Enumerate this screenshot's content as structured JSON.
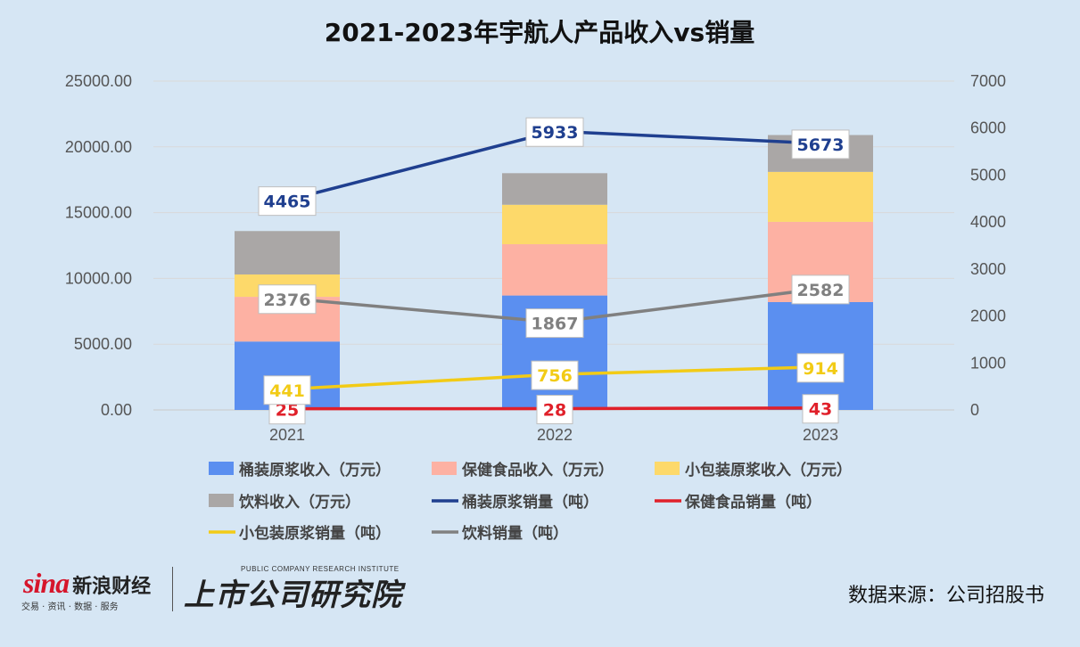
{
  "chart_data": {
    "type": "bar",
    "title": "2021-2023年宇航人产品收入vs销量",
    "categories": [
      "2021",
      "2022",
      "2023"
    ],
    "y_left": {
      "ticks": [
        "0.00",
        "5000.00",
        "10000.00",
        "15000.00",
        "20000.00",
        "25000.00"
      ],
      "ylim": [
        0,
        25000
      ]
    },
    "y_right": {
      "ticks": [
        "0",
        "1000",
        "2000",
        "3000",
        "4000",
        "5000",
        "6000",
        "7000"
      ],
      "ylim": [
        0,
        7000
      ]
    },
    "bar_series": [
      {
        "name": "桶装原浆收入（万元）",
        "color": "#5b8ff0",
        "values": [
          5200,
          8700,
          8200
        ]
      },
      {
        "name": "保健食品收入（万元）",
        "color": "#fdb1a3",
        "values": [
          3400,
          3900,
          6100
        ]
      },
      {
        "name": "小包装原浆收入（万元）",
        "color": "#fdd96a",
        "values": [
          1700,
          3000,
          3800
        ]
      },
      {
        "name": "饮料收入（万元）",
        "color": "#aaa7a6",
        "values": [
          3300,
          2400,
          2800
        ]
      }
    ],
    "line_series": [
      {
        "name": "桶装原浆销量（吨）",
        "color": "#1f3f8f",
        "values": [
          4465,
          5933,
          5673
        ],
        "labels": [
          "4465",
          "5933",
          "5673"
        ]
      },
      {
        "name": "保健食品销量（吨）",
        "color": "#e0202a",
        "values": [
          25,
          28,
          43
        ],
        "labels": [
          "25",
          "28",
          "43"
        ]
      },
      {
        "name": "小包装原浆销量（吨）",
        "color": "#f2cb16",
        "values": [
          441,
          756,
          914
        ],
        "labels": [
          "441",
          "756",
          "914"
        ]
      },
      {
        "name": "饮料销量（吨）",
        "color": "#808080",
        "values": [
          2376,
          1867,
          2582
        ],
        "labels": [
          "2376",
          "1867",
          "2582"
        ]
      }
    ],
    "legend_position": "bottom",
    "grid": true
  },
  "footer": {
    "sina_word": "sina",
    "sina_cn": "新浪财经",
    "sina_sub": "交易 · 资讯 · 数据 · 服务",
    "inst_cn": "上市公司研究院",
    "inst_en": "PUBLIC COMPANY RESEARCH INSTITUTE",
    "source": "数据来源：公司招股书"
  }
}
